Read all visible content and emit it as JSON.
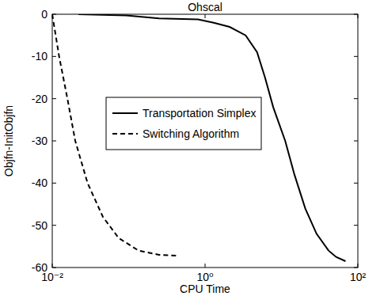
{
  "chart_data": {
    "type": "line",
    "title": "Ohscal",
    "x_label": "CPU Time",
    "y_label": "Objfn-InitObjfn",
    "log": "x",
    "xlim": [
      0.01,
      100
    ],
    "xticks": [
      {
        "value": 0.01,
        "label": "10⁻²"
      },
      {
        "value": 1,
        "label": "10⁰"
      },
      {
        "value": 100,
        "label": "10²"
      }
    ],
    "ylim": [
      -60,
      0
    ],
    "yticks": [
      -60,
      -50,
      -40,
      -30,
      -20,
      -10,
      0
    ],
    "legend": "center",
    "series": [
      {
        "name": "Transportation Simplex",
        "color": "#000000",
        "line_style": "solid",
        "x": [
          0.022,
          0.093,
          0.25,
          0.81,
          1.3,
          2.1,
          3.4,
          4.8,
          6.1,
          7.8,
          11.2,
          14.8,
          20.5,
          28.8,
          41.4,
          52,
          69
        ],
        "values": [
          0,
          -0.3,
          -1,
          -1.2,
          -2,
          -3,
          -5,
          -9,
          -15,
          -22,
          -30,
          -38,
          -46,
          -52,
          -56,
          -57.5,
          -58.5
        ]
      },
      {
        "name": "Switching Algorithm",
        "color": "#000000",
        "line_style": "dashed",
        "x": [
          0.01,
          0.0123,
          0.0158,
          0.02,
          0.029,
          0.046,
          0.074,
          0.135,
          0.25,
          0.45
        ],
        "values": [
          0,
          -10,
          -20,
          -30,
          -40,
          -48,
          -53,
          -56,
          -57,
          -57.2
        ]
      }
    ]
  }
}
